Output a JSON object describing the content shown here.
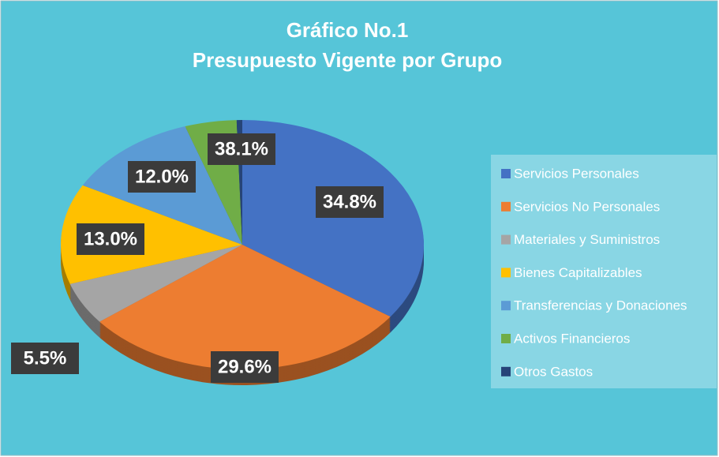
{
  "chart_data": {
    "type": "pie",
    "title": "Gráfico No.1",
    "subtitle": "Presupuesto Vigente por Grupo",
    "categories": [
      "Servicios Personales",
      "Servicios No Personales",
      "Materiales y Suministros",
      "Bienes Capitalizables",
      "Transferencias y Donaciones",
      "Activos Financieros",
      "Otros Gastos"
    ],
    "values": [
      34.8,
      29.6,
      5.5,
      13.0,
      12.0,
      4.6,
      0.5
    ],
    "value_labels": [
      "34.8%",
      "29.6%",
      "5.5%",
      "13.0%",
      "12.0%",
      null,
      null
    ],
    "colors": [
      "#4472c4",
      "#ed7d31",
      "#a5a5a5",
      "#ffc000",
      "#5b9bd5",
      "#70ad47",
      "#264478"
    ],
    "annotations": [
      {
        "text": "38.1%"
      }
    ],
    "legend": "right"
  }
}
